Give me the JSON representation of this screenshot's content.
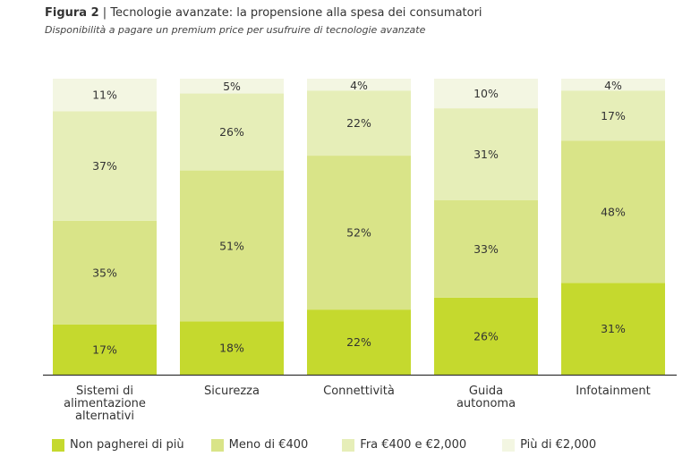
{
  "header": {
    "figure_label": "Figura 2",
    "separator": " | ",
    "title": "Tecnologie avanzate: la propensione alla spesa dei consumatori",
    "subtitle": "Disponibilità a pagare un premium price per usufruire di tecnologie avanzate"
  },
  "chart_data": {
    "type": "bar",
    "stacked": true,
    "orientation": "vertical",
    "title": "Tecnologie avanzate: la propensione alla spesa dei consumatori",
    "subtitle": "Disponibilità a pagare un premium price per usufruire di tecnologie avanzate",
    "xlabel": "",
    "ylabel": "",
    "ylim": [
      0,
      100
    ],
    "grid": false,
    "legend_position": "bottom",
    "categories": [
      [
        "Sistemi di",
        "alimentazione",
        "alternativi"
      ],
      [
        "Sicurezza"
      ],
      [
        "Connettività"
      ],
      [
        "Guida",
        "autonoma"
      ],
      [
        "Infotainment"
      ]
    ],
    "category_names": [
      "Sistemi di alimentazione alternativi",
      "Sicurezza",
      "Connettività",
      "Guida autonoma",
      "Infotainment"
    ],
    "series": [
      {
        "name": "Non pagherei di più",
        "color": "#c5d92e",
        "values": [
          17,
          18,
          22,
          26,
          31
        ]
      },
      {
        "name": "Meno di €400",
        "color": "#d9e488",
        "values": [
          35,
          51,
          52,
          33,
          48
        ]
      },
      {
        "name": "Fra €400 e €2,000",
        "color": "#e6eeb8",
        "values": [
          37,
          26,
          22,
          31,
          17
        ]
      },
      {
        "name": "Più di €2,000",
        "color": "#f3f6e2",
        "values": [
          11,
          5,
          4,
          10,
          4
        ]
      }
    ],
    "value_suffix": "%"
  }
}
